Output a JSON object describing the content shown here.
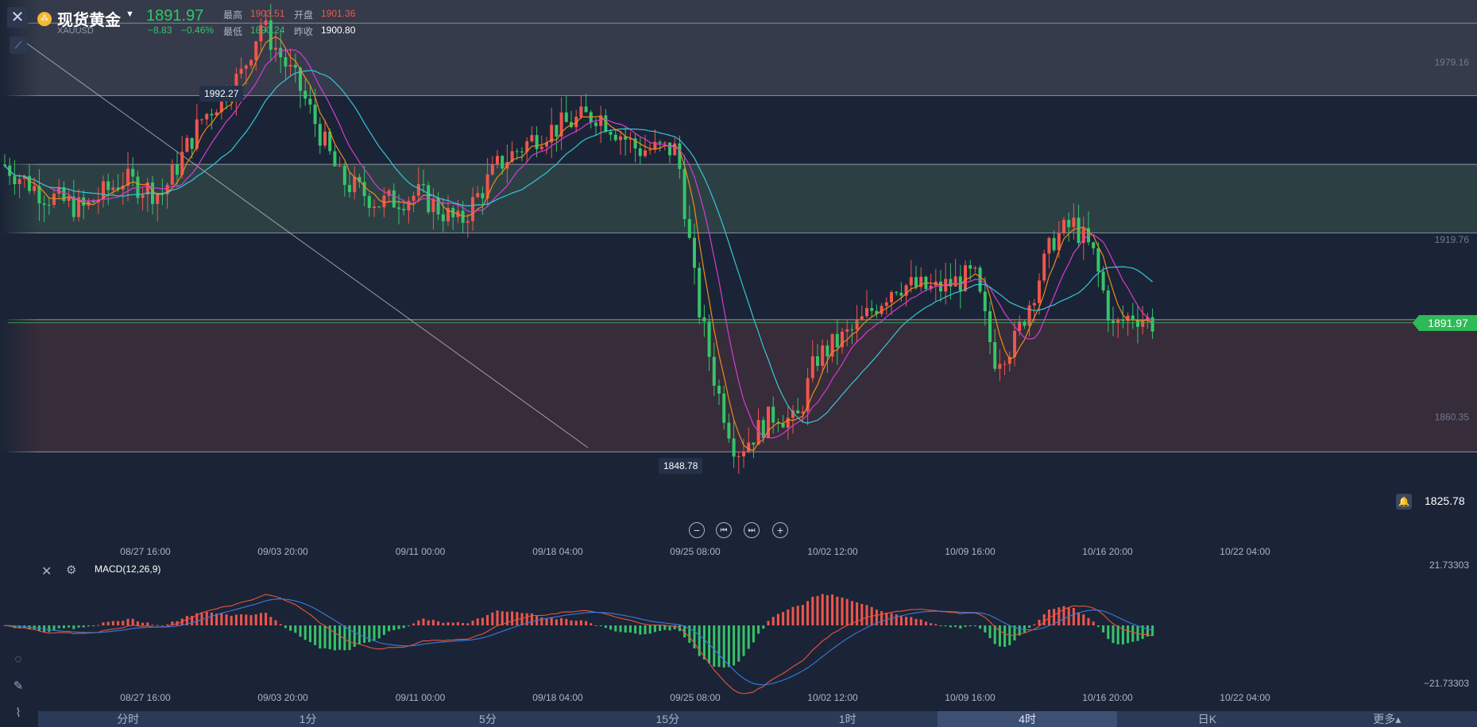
{
  "header": {
    "name": "现货黄金",
    "code": "XAUUSD",
    "price": "1891.97",
    "change": "−8.83",
    "change_pct": "−0.46%",
    "high_label": "最高",
    "high": "1903.51",
    "open_label": "开盘",
    "open": "1901.36",
    "low_label": "最低",
    "low": "1890.24",
    "prev_label": "昨收",
    "prev_close": "1900.80"
  },
  "icons": {
    "close": "close-icon",
    "symbol": "gold-coin-icon",
    "drawing": "line-tool-icon",
    "pencil": "pencil-icon",
    "indicator": "indicator-icon",
    "alert": "bell-icon"
  },
  "price_axis": {
    "ticks": [
      "1979.16",
      "1919.76",
      "1860.35"
    ],
    "current_price": "1891.97",
    "alert_price": "1825.78"
  },
  "extremes": {
    "high_marker": "1992.27",
    "low_marker": "1848.78"
  },
  "time_axis": [
    "08/27 16:00",
    "09/03 20:00",
    "09/11 00:00",
    "09/18 04:00",
    "09/25 08:00",
    "10/02 12:00",
    "10/09 16:00",
    "10/16 20:00",
    "10/22 04:00"
  ],
  "macd": {
    "title": "MACD(12,26,9)",
    "top": "21.73303",
    "bottom": "−21.73303"
  },
  "controls": {
    "zoom_out": "−",
    "first": "⏮",
    "last": "⏭",
    "zoom_in": "+"
  },
  "tabs": [
    "分时",
    "1分",
    "5分",
    "15分",
    "1时",
    "4时",
    "日K",
    "更多▴"
  ],
  "active_tab": "4时",
  "colors": {
    "up": "#f0554d",
    "down": "#35c46a",
    "ma_orange": "#f08a1c",
    "ma_magenta": "#d63ad6",
    "ma_cyan": "#36c6d8",
    "dif": "#e8553c",
    "dea": "#3a7be0",
    "bg": "#1b2436"
  },
  "chart_data": {
    "type": "candlestick",
    "symbol": "XAUUSD",
    "interval": "4时",
    "ylim": [
      1830,
      2000
    ],
    "horizontal_levels": [
      1992.27,
      1968,
      1945,
      1922,
      1893,
      1848.78
    ],
    "price_path": [
      [
        "08/20",
        1945
      ],
      [
        "08/22",
        1935
      ],
      [
        "08/24",
        1930
      ],
      [
        "08/26",
        1940
      ],
      [
        "08/28",
        1935
      ],
      [
        "08/30",
        1960
      ],
      [
        "09/01",
        1975
      ],
      [
        "09/02",
        1992.27
      ],
      [
        "09/04",
        1970
      ],
      [
        "09/06",
        1940
      ],
      [
        "09/08",
        1932
      ],
      [
        "09/10",
        1935
      ],
      [
        "09/12",
        1925
      ],
      [
        "09/14",
        1945
      ],
      [
        "09/16",
        1955
      ],
      [
        "09/18",
        1960
      ],
      [
        "09/19",
        1962
      ],
      [
        "09/21",
        1950
      ],
      [
        "09/23",
        1950
      ],
      [
        "09/24",
        1900
      ],
      [
        "09/25",
        1870
      ],
      [
        "09/26",
        1848.78
      ],
      [
        "09/28",
        1862
      ],
      [
        "09/29",
        1858
      ],
      [
        "09/30",
        1880
      ],
      [
        "10/02",
        1890
      ],
      [
        "10/04",
        1905
      ],
      [
        "10/06",
        1903
      ],
      [
        "10/08",
        1908
      ],
      [
        "10/09",
        1880
      ],
      [
        "10/10",
        1885
      ],
      [
        "10/12",
        1920
      ],
      [
        "10/13",
        1925
      ],
      [
        "10/14",
        1915
      ],
      [
        "10/15",
        1890
      ],
      [
        "10/16",
        1895
      ],
      [
        "10/17",
        1891.97
      ]
    ]
  }
}
